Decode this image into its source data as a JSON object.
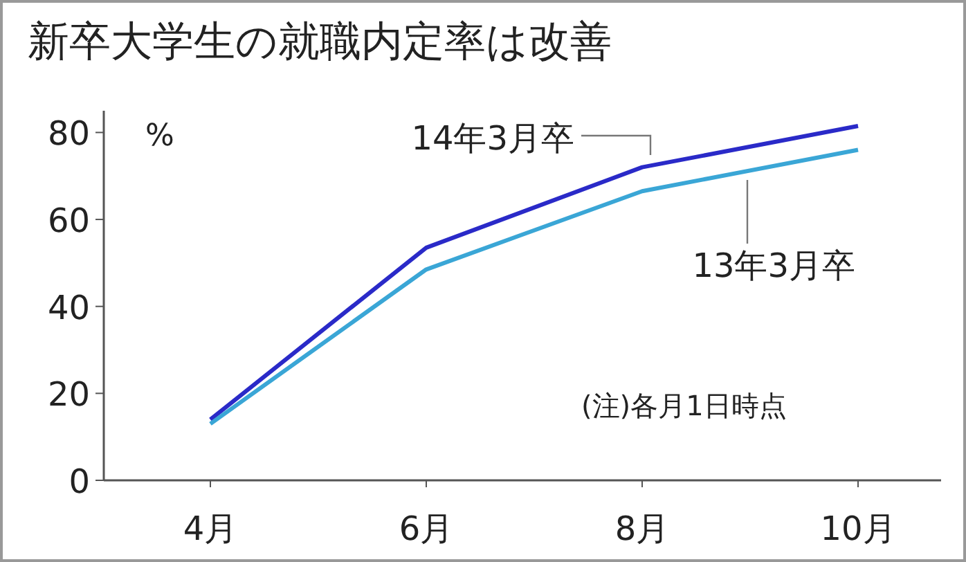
{
  "chart_data": {
    "type": "line",
    "title": "新卒大学生の就職内定率は改善",
    "ylabel": "%",
    "categories": [
      "4月",
      "6月",
      "8月",
      "10月"
    ],
    "series": [
      {
        "name": "14年3月卒",
        "color": "#2a2ac8",
        "values": [
          14,
          53.5,
          72,
          81.5
        ]
      },
      {
        "name": "13年3月卒",
        "color": "#3aa6d6",
        "values": [
          13,
          48.5,
          66.5,
          76
        ]
      }
    ],
    "ylim": [
      0,
      85
    ],
    "yticks": [
      0,
      20,
      40,
      60,
      80
    ],
    "grid": false,
    "annotations": [
      "(注)各月1日時点"
    ]
  }
}
